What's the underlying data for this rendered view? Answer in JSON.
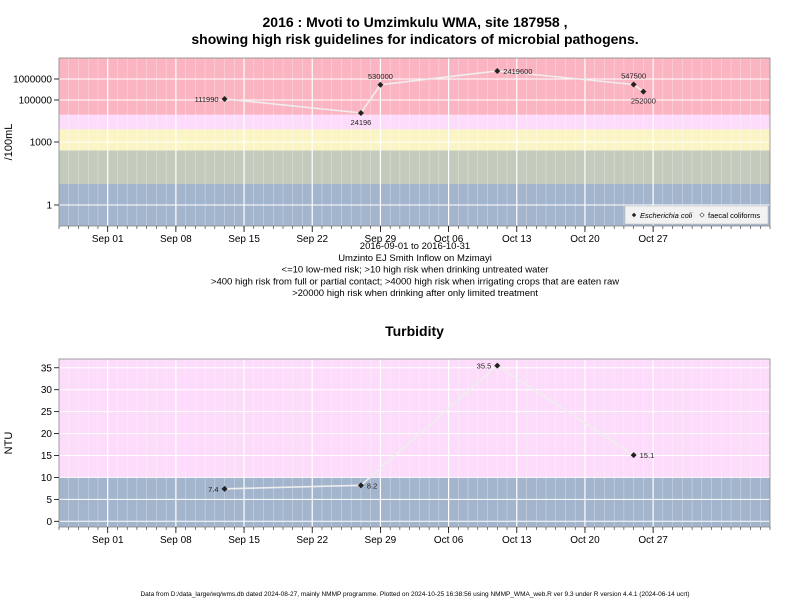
{
  "title_line1": "2016 : Mvoti to Umzimkulu WMA, site 187958 ,",
  "title_line2": "showing high risk guidelines for indicators of microbial pathogens.",
  "footer": "Data from D:/data_large/wq/wms.db dated 2024-08-27, mainly NMMP programme. Plotted on 2024-10-25 16:38:56 using NMMP_WMA_web.R ver 9.3 under R version 4.4.1 (2024-06-14 ucrt)",
  "chart_data": [
    {
      "type": "line",
      "ylabel": "/100mL",
      "yscale": "log",
      "ylim": [
        0.1,
        10000000
      ],
      "xlim": [
        "2016-08-27",
        "2016-11-08"
      ],
      "x_ticks": [
        "Sep 01",
        "Sep 08",
        "Sep 15",
        "Sep 22",
        "Sep 29",
        "Oct 06",
        "Oct 13",
        "Oct 20",
        "Oct 27"
      ],
      "x_tick_dates": [
        "2016-09-01",
        "2016-09-08",
        "2016-09-15",
        "2016-09-22",
        "2016-09-29",
        "2016-10-06",
        "2016-10-13",
        "2016-10-20",
        "2016-10-27"
      ],
      "y_ticks": [
        1,
        1000,
        100000,
        1000000
      ],
      "y_tick_labels": [
        "1",
        "1000",
        "100000",
        "1000000"
      ],
      "bands": [
        {
          "from": 0.1,
          "to": 10,
          "color": "#a3b4cd"
        },
        {
          "from": 10,
          "to": 400,
          "color": "#c3cbbd"
        },
        {
          "from": 400,
          "to": 4000,
          "color": "#fbf5c6"
        },
        {
          "from": 4000,
          "to": 20000,
          "color": "#fcdcfa"
        },
        {
          "from": 20000,
          "to": 10000000,
          "color": "#fbb4c2"
        }
      ],
      "series": [
        {
          "name": "Escherichia coli",
          "x": [
            "2016-09-13",
            "2016-09-27",
            "2016-09-29",
            "2016-10-11",
            "2016-10-25",
            "2016-10-26"
          ],
          "values": [
            111990,
            24196,
            530000,
            2419600,
            547500,
            252000
          ],
          "labels": [
            "111990",
            "24196",
            "530000",
            "2419600",
            "547500",
            "252000"
          ],
          "label_pos": [
            "left",
            "below",
            "above",
            "right",
            "above",
            "below"
          ]
        }
      ],
      "subtitle_lines": [
        "2016-09-01 to 2016-10-31",
        "Umzinto EJ Smith Inflow on Mzimayi",
        "<=10 low-med risk; >10 high risk when drinking untreated water",
        ">400 high risk from full or partial contact; >4000 high risk when irrigating crops that are eaten raw",
        ">20000 high risk when drinking after only limited treatment"
      ],
      "legend": {
        "position": "bottom-right",
        "items": [
          "Escherichia coli",
          "faecal coliforms"
        ]
      }
    },
    {
      "type": "line",
      "title": "Turbidity",
      "ylabel": "NTU",
      "ylim": [
        -1.3,
        37
      ],
      "xlim": [
        "2016-08-27",
        "2016-11-08"
      ],
      "x_ticks": [
        "Sep 01",
        "Sep 08",
        "Sep 15",
        "Sep 22",
        "Sep 29",
        "Oct 06",
        "Oct 13",
        "Oct 20",
        "Oct 27"
      ],
      "x_tick_dates": [
        "2016-09-01",
        "2016-09-08",
        "2016-09-15",
        "2016-09-22",
        "2016-09-29",
        "2016-10-06",
        "2016-10-13",
        "2016-10-20",
        "2016-10-27"
      ],
      "y_ticks": [
        0,
        5,
        10,
        15,
        20,
        25,
        30,
        35
      ],
      "y_tick_labels": [
        "0",
        "5",
        "10",
        "15",
        "20",
        "25",
        "30",
        "35"
      ],
      "bands": [
        {
          "from": -1.3,
          "to": 10,
          "color": "#a3b4cd"
        },
        {
          "from": 10,
          "to": 37,
          "color": "#fcdcfa"
        }
      ],
      "series": [
        {
          "x": [
            "2016-09-13",
            "2016-09-27",
            "2016-10-11",
            "2016-10-25"
          ],
          "values": [
            7.4,
            8.2,
            35.5,
            15.1
          ],
          "labels": [
            "7.4",
            "8.2",
            "35.5",
            "15.1"
          ],
          "label_pos": [
            "left",
            "right",
            "left",
            "right"
          ]
        }
      ]
    }
  ]
}
